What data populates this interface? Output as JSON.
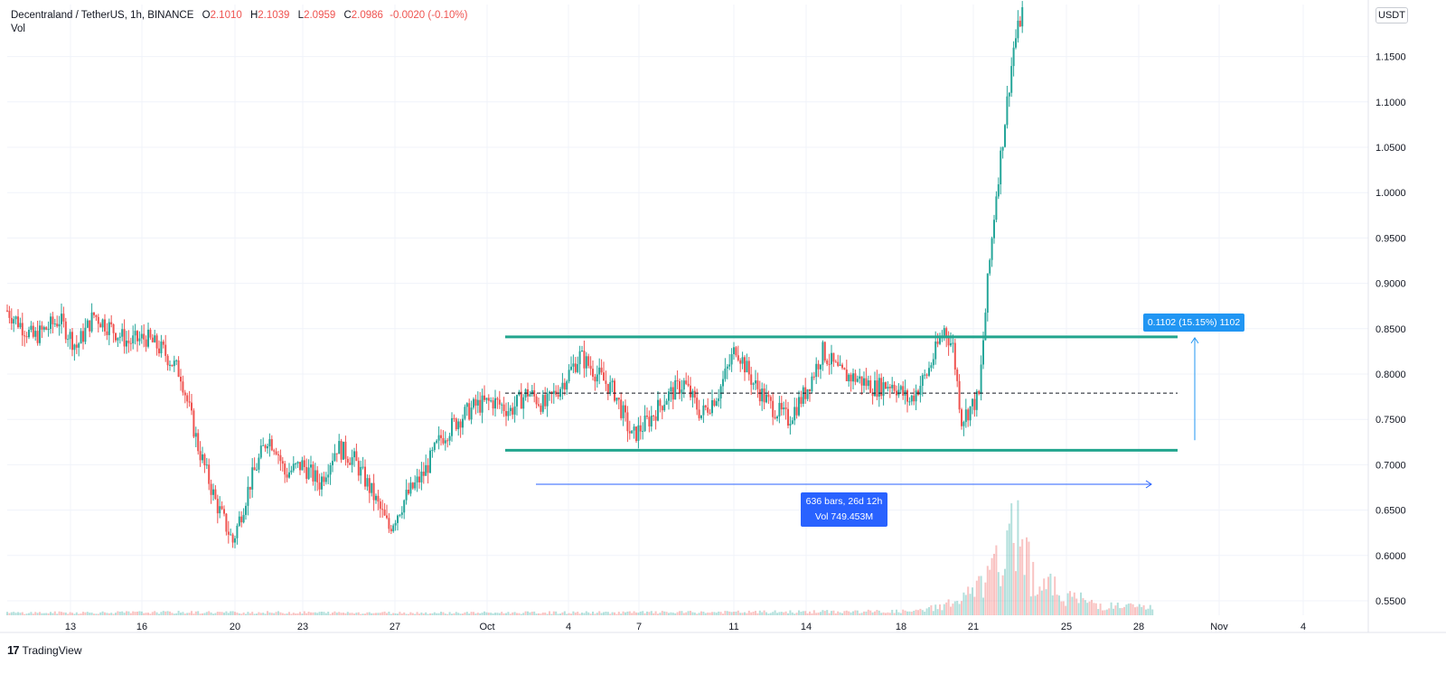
{
  "header": {
    "symbol": "Decentraland / TetherUS, 1h, BINANCE",
    "open_label": "O",
    "open": "2.1010",
    "high_label": "H",
    "high": "2.1039",
    "low_label": "L",
    "low": "2.0959",
    "close_label": "C",
    "close": "2.0986",
    "change": "-0.0020 (-0.10%)",
    "volume_label": "Vol"
  },
  "currency": "USDT",
  "branding": {
    "logo": "17",
    "name": "TradingView"
  },
  "annotations": {
    "price_range": "0.1102 (15.15%) 1102",
    "date_range_line1": "636 bars, 26d 12h",
    "date_range_line2": "Vol 749.453M"
  },
  "colors": {
    "up": "#26a69a",
    "down": "#ef5350",
    "range_lines": "#22a58e",
    "measure": "#2962ff",
    "measure_price": "#2196f3"
  },
  "chart_data": {
    "type": "candlestick",
    "title": "Decentraland / TetherUS, 1h, BINANCE",
    "y_axis": {
      "ticks": [
        "1.1500",
        "1.1000",
        "1.0500",
        "1.0000",
        "0.9500",
        "0.9000",
        "0.8500",
        "0.8000",
        "0.7500",
        "0.7000",
        "0.6500",
        "0.6000",
        "0.5500"
      ],
      "range": [
        0.535,
        1.2
      ]
    },
    "x_axis": {
      "ticks": [
        "13",
        "16",
        "20",
        "23",
        "27",
        "Oct",
        "4",
        "7",
        "11",
        "14",
        "18",
        "21",
        "25",
        "28",
        "Nov",
        "4"
      ]
    },
    "price_path": [
      [
        0,
        0.87
      ],
      [
        3,
        0.84
      ],
      [
        6,
        0.86
      ],
      [
        8,
        0.83
      ],
      [
        10,
        0.865
      ],
      [
        12,
        0.85
      ],
      [
        14,
        0.835
      ],
      [
        16,
        0.84
      ],
      [
        18,
        0.825
      ],
      [
        20,
        0.8
      ],
      [
        22,
        0.72
      ],
      [
        24,
        0.66
      ],
      [
        26,
        0.615
      ],
      [
        28,
        0.68
      ],
      [
        30,
        0.73
      ],
      [
        31,
        0.72
      ],
      [
        32,
        0.69
      ],
      [
        34,
        0.7
      ],
      [
        36,
        0.68
      ],
      [
        38,
        0.72
      ],
      [
        40,
        0.705
      ],
      [
        42,
        0.67
      ],
      [
        44,
        0.63
      ],
      [
        46,
        0.665
      ],
      [
        48,
        0.69
      ],
      [
        50,
        0.73
      ],
      [
        52,
        0.75
      ],
      [
        54,
        0.765
      ],
      [
        56,
        0.77
      ],
      [
        58,
        0.76
      ],
      [
        60,
        0.78
      ],
      [
        62,
        0.765
      ],
      [
        64,
        0.79
      ],
      [
        66,
        0.82
      ],
      [
        68,
        0.8
      ],
      [
        70,
        0.78
      ],
      [
        72,
        0.73
      ],
      [
        74,
        0.75
      ],
      [
        76,
        0.775
      ],
      [
        78,
        0.79
      ],
      [
        80,
        0.755
      ],
      [
        82,
        0.78
      ],
      [
        84,
        0.83
      ],
      [
        86,
        0.79
      ],
      [
        88,
        0.765
      ],
      [
        90,
        0.75
      ],
      [
        92,
        0.78
      ],
      [
        94,
        0.825
      ],
      [
        96,
        0.8
      ],
      [
        98,
        0.795
      ],
      [
        100,
        0.785
      ],
      [
        102,
        0.79
      ],
      [
        104,
        0.77
      ],
      [
        106,
        0.8
      ],
      [
        108,
        0.85
      ],
      [
        109,
        0.83
      ],
      [
        110,
        0.75
      ],
      [
        112,
        0.775
      ],
      [
        113,
        0.9
      ],
      [
        114,
        1.0
      ],
      [
        115,
        1.08
      ],
      [
        116,
        1.16
      ],
      [
        117,
        1.2
      ]
    ],
    "volume_path": [
      [
        0,
        0.005
      ],
      [
        20,
        0.006
      ],
      [
        50,
        0.005
      ],
      [
        80,
        0.006
      ],
      [
        105,
        0.008
      ],
      [
        110,
        0.03
      ],
      [
        113,
        0.07
      ],
      [
        115,
        0.12
      ],
      [
        117,
        0.2
      ],
      [
        118,
        0.08
      ],
      [
        122,
        0.04
      ],
      [
        126,
        0.02
      ],
      [
        132,
        0.015
      ]
    ],
    "range_box": {
      "top": 0.841,
      "bottom": 0.716,
      "mid": 0.779
    },
    "price_measure": {
      "from": 0.727,
      "to": 0.84,
      "label": "0.1102 (15.15%) 1102"
    },
    "date_measure": {
      "label": "636 bars, 26d 12h",
      "volume": "Vol 749.453M"
    }
  }
}
